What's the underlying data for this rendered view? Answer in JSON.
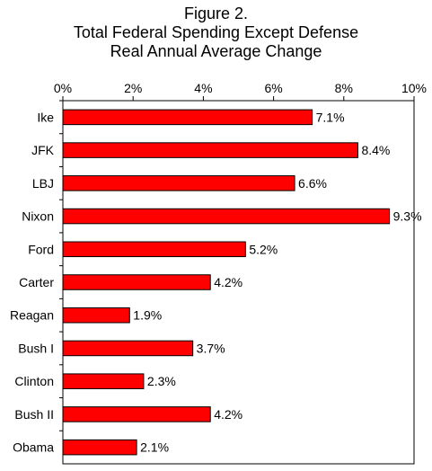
{
  "title_lines": [
    "Figure 2.",
    "Total Federal Spending Except Defense",
    "Real Annual Average Change"
  ],
  "chart_data": {
    "type": "bar",
    "orientation": "horizontal",
    "title": "Figure 2. Total Federal Spending Except Defense Real Annual Average Change",
    "categories": [
      "Ike",
      "JFK",
      "LBJ",
      "Nixon",
      "Ford",
      "Carter",
      "Reagan",
      "Bush I",
      "Clinton",
      "Bush II",
      "Obama"
    ],
    "values": [
      7.1,
      8.4,
      6.6,
      9.3,
      5.2,
      4.2,
      1.9,
      3.7,
      2.3,
      4.2,
      2.1
    ],
    "data_labels": [
      "7.1%",
      "8.4%",
      "6.6%",
      "9.3%",
      "5.2%",
      "4.2%",
      "1.9%",
      "3.7%",
      "2.3%",
      "4.2%",
      "2.1%"
    ],
    "x_ticks": [
      0,
      2,
      4,
      6,
      8,
      10
    ],
    "x_tick_labels": [
      "0%",
      "2%",
      "4%",
      "6%",
      "8%",
      "10%"
    ],
    "xlim": [
      0,
      10
    ],
    "x_axis_position": "top",
    "grid": false,
    "legend": "none",
    "bar_color": "#ff0000",
    "bar_border_color": "#000000"
  }
}
